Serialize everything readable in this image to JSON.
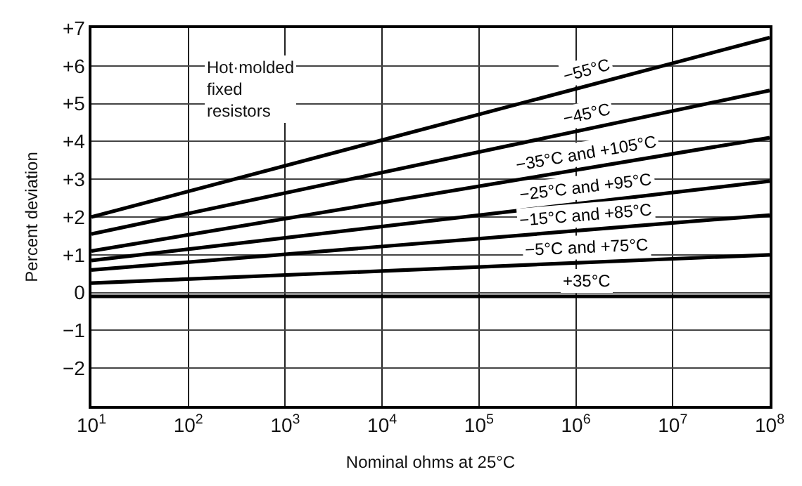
{
  "chart_data": {
    "type": "line",
    "xlabel": "Nominal ohms at 25°C",
    "ylabel": "Percent deviation",
    "x": [
      10,
      100000000
    ],
    "series": [
      {
        "name": "−55°C",
        "color": "#000000",
        "values": [
          2.0,
          6.75
        ]
      },
      {
        "name": "−45°C",
        "color": "#000000",
        "values": [
          1.55,
          5.35
        ]
      },
      {
        "name": "−35°C and +105°C",
        "color": "#000000",
        "values": [
          1.1,
          4.1
        ]
      },
      {
        "name": "−25°C and +95°C",
        "color": "#000000",
        "values": [
          0.85,
          2.95
        ]
      },
      {
        "name": "−15°C and +85°C",
        "color": "#000000",
        "values": [
          0.6,
          2.05
        ]
      },
      {
        "name": "−5°C and +75°C",
        "color": "#000000",
        "values": [
          0.25,
          1.0
        ]
      },
      {
        "name": "+35°C",
        "color": "#000000",
        "values": [
          -0.1,
          -0.1
        ]
      }
    ],
    "log": "x",
    "grid": true,
    "legend": false,
    "marker": "none",
    "line_style": "solid",
    "xlim": [
      10,
      100000000
    ],
    "xticks": [
      {
        "value": 10,
        "label": "10$^{1}$"
      },
      {
        "value": 100,
        "label": "10$^{2}$"
      },
      {
        "value": 1000,
        "label": "10$^{3}$"
      },
      {
        "value": 10000,
        "label": "10$^{4}$"
      },
      {
        "value": 100000,
        "label": "10$^{5}$"
      },
      {
        "value": 1000000,
        "label": "10$^{6}$"
      },
      {
        "value": 10000000,
        "label": "10$^{7}$"
      },
      {
        "value": 100000000,
        "label": "10$^{8}$"
      }
    ],
    "ylim": [
      -3,
      7
    ],
    "yticks": [
      {
        "value": 7,
        "label": "+7"
      },
      {
        "value": 6,
        "label": "+6"
      },
      {
        "value": 5,
        "label": "+5"
      },
      {
        "value": 4,
        "label": "+4"
      },
      {
        "value": 3,
        "label": "+3"
      },
      {
        "value": 2,
        "label": "+2"
      },
      {
        "value": 1,
        "label": "+1"
      },
      0,
      {
        "value": -1,
        "label": "−1"
      },
      {
        "value": -2,
        "label": "−2"
      }
    ],
    "annotations": [
      "Hot·molded\nfixed\nresistors"
    ]
  }
}
